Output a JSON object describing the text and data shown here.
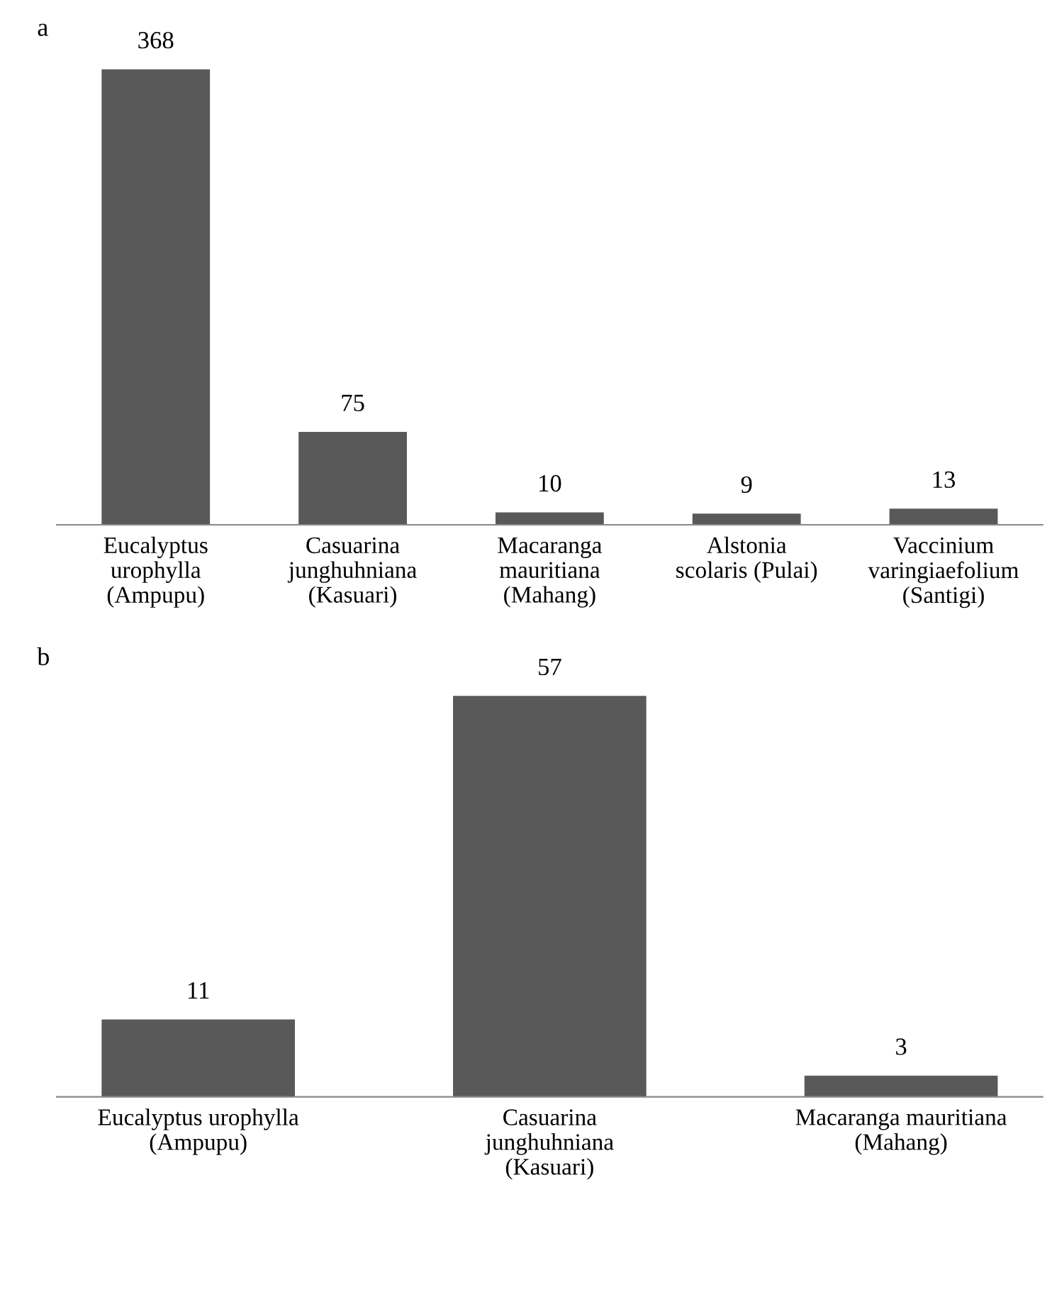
{
  "chart_data": [
    {
      "type": "bar",
      "title": "a",
      "categories": [
        "Eucalyptus\nurophylla\n(Ampupu)",
        "Casuarina\njunghuhniana\n(Kasuari)",
        "Macaranga\nmauritiana\n(Mahang)",
        "Alstonia\nscolaris (Pulai)",
        "Vaccinium\nvaringiaefolium\n(Santigi)"
      ],
      "values": [
        368,
        75,
        10,
        9,
        13
      ],
      "color": "#595959",
      "data_labels": true
    },
    {
      "type": "bar",
      "title": "b",
      "categories": [
        "Eucalyptus urophylla\n(Ampupu)",
        "Casuarina\njunghuhniana\n(Kasuari)",
        "Macaranga mauritiana\n(Mahang)"
      ],
      "values": [
        11,
        57,
        3
      ],
      "color": "#595959",
      "data_labels": true
    }
  ]
}
